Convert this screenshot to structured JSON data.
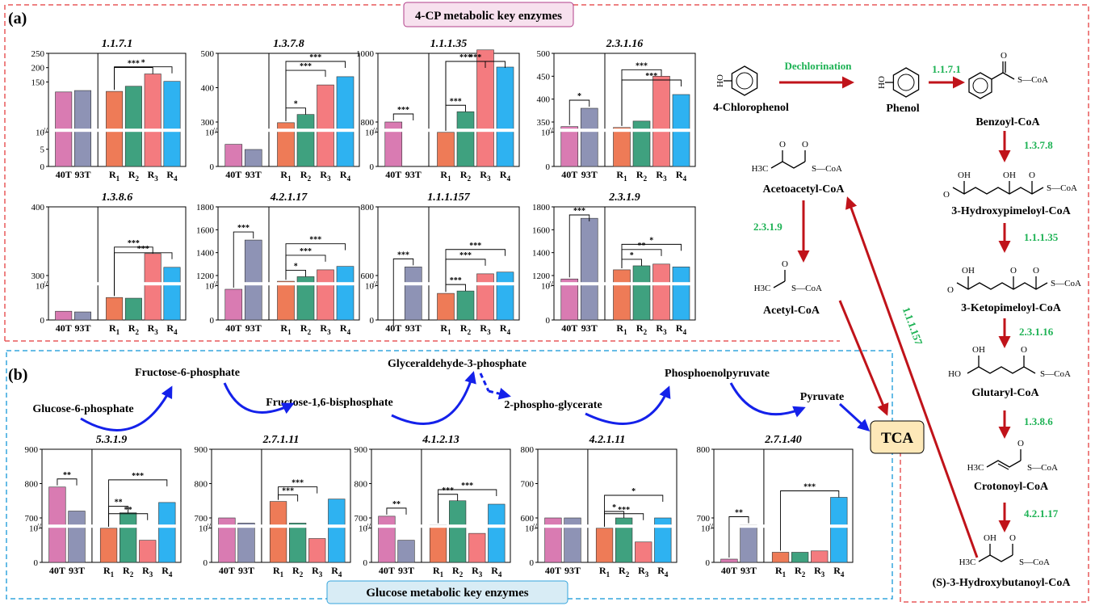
{
  "panel_a": {
    "letter": "(a)",
    "header": "4-CP metabolic key enzymes",
    "groups": [
      "40T",
      "93T",
      "R1",
      "R2",
      "R3",
      "R4"
    ]
  },
  "panel_b": {
    "letter": "(b)",
    "header": "Glucose metabolic key enzymes"
  },
  "colors": {
    "40T": "#d97bb2",
    "93T": "#8e93b5",
    "R1": "#ee7b57",
    "R2": "#3fa17f",
    "R3": "#f47b7f",
    "R4": "#2eb2f1",
    "red_border": "#e8585a",
    "blue_border": "#35a5dd",
    "red_arrow": "#c0131a",
    "blue_arrow": "#1421ea",
    "enzyme_text": "#1db254",
    "pink_box": "#f7e1ee",
    "tca_box": "#fde8b8",
    "bottom_box": "#d8ecf5"
  },
  "chart_data": [
    {
      "type": "bar",
      "title": "1.1.7.1",
      "categories": [
        "40T",
        "93T",
        "R1",
        "R2",
        "R3",
        "R4"
      ],
      "values": [
        115,
        120,
        117,
        135,
        178,
        152
      ],
      "ylim": [
        0,
        250
      ],
      "yticks": [
        "0",
        "5",
        "10",
        "150",
        "200",
        "250"
      ],
      "significance": [
        {
          "a": "R1",
          "b": "R3",
          "label": "***"
        },
        {
          "a": "R1",
          "b": "R4",
          "label": "*"
        }
      ]
    },
    {
      "type": "bar",
      "title": "1.3.7.8",
      "categories": [
        "40T",
        "93T",
        "R1",
        "R2",
        "R3",
        "R4"
      ],
      "values": [
        235,
        220,
        298,
        322,
        408,
        432
      ],
      "ylim": [
        0,
        500
      ],
      "yticks": [
        "0",
        "10",
        "300",
        "400",
        "500"
      ],
      "significance": [
        {
          "a": "R1",
          "b": "R2",
          "label": "*"
        },
        {
          "a": "R1",
          "b": "R3",
          "label": "***"
        },
        {
          "a": "R1",
          "b": "R4",
          "label": "***"
        }
      ]
    },
    {
      "type": "bar",
      "title": "1.1.1.35",
      "categories": [
        "40T",
        "93T",
        "R1",
        "R2",
        "R3",
        "R4"
      ],
      "values": [
        800,
        650,
        770,
        830,
        1010,
        960
      ],
      "ylim": [
        0,
        1000
      ],
      "yticks": [
        "0",
        "10",
        "800",
        "1000"
      ],
      "significance": [
        {
          "a": "40T",
          "b": "93T",
          "label": "***"
        },
        {
          "a": "R1",
          "b": "R2",
          "label": "***"
        },
        {
          "a": "R1",
          "b": "R3",
          "label": "***"
        },
        {
          "a": "R1",
          "b": "R4",
          "label": "***"
        }
      ]
    },
    {
      "type": "bar",
      "title": "2.3.1.16",
      "categories": [
        "40T",
        "93T",
        "R1",
        "R2",
        "R3",
        "R4"
      ],
      "values": [
        340,
        380,
        338,
        352,
        450,
        410
      ],
      "ylim": [
        0,
        500
      ],
      "yticks": [
        "0",
        "10",
        "350",
        "400",
        "450",
        "500"
      ],
      "significance": [
        {
          "a": "40T",
          "b": "93T",
          "label": "*"
        },
        {
          "a": "R1",
          "b": "R3",
          "label": "***"
        },
        {
          "a": "R1",
          "b": "R4",
          "label": "***"
        }
      ]
    },
    {
      "type": "bar",
      "title": "1.3.8.6",
      "categories": [
        "40T",
        "93T",
        "R1",
        "R2",
        "R3",
        "R4"
      ],
      "values": [
        248,
        247,
        268,
        267,
        332,
        312
      ],
      "ylim": [
        0,
        400
      ],
      "yticks": [
        "0",
        "10",
        "300",
        "400"
      ],
      "significance": [
        {
          "a": "R1",
          "b": "R3",
          "label": "***"
        },
        {
          "a": "R1",
          "b": "R4",
          "label": "***"
        }
      ]
    },
    {
      "type": "bar",
      "title": "4.2.1.17",
      "categories": [
        "40T",
        "93T",
        "R1",
        "R2",
        "R3",
        "R4"
      ],
      "values": [
        1080,
        1510,
        1150,
        1190,
        1250,
        1280
      ],
      "ylim": [
        0,
        1800
      ],
      "yticks": [
        "0",
        "10",
        "1200",
        "1400",
        "1600",
        "1800"
      ],
      "significance": [
        {
          "a": "40T",
          "b": "93T",
          "label": "***"
        },
        {
          "a": "R1",
          "b": "R2",
          "label": "*"
        },
        {
          "a": "R1",
          "b": "R3",
          "label": "***"
        },
        {
          "a": "R1",
          "b": "R4",
          "label": "***"
        }
      ]
    },
    {
      "type": "bar",
      "title": "1.1.1.157",
      "categories": [
        "40T",
        "93T",
        "R1",
        "R2",
        "R3",
        "R4"
      ],
      "values": [
        450,
        625,
        548,
        555,
        605,
        610
      ],
      "ylim": [
        0,
        800
      ],
      "yticks": [
        "0",
        "10",
        "600",
        "800"
      ],
      "significance": [
        {
          "a": "40T",
          "b": "93T",
          "label": "***"
        },
        {
          "a": "R1",
          "b": "R2",
          "label": "***"
        },
        {
          "a": "R1",
          "b": "R3",
          "label": "***"
        },
        {
          "a": "R1",
          "b": "R4",
          "label": "***"
        }
      ]
    },
    {
      "type": "bar",
      "title": "2.3.1.9",
      "categories": [
        "40T",
        "93T",
        "R1",
        "R2",
        "R3",
        "R4"
      ],
      "values": [
        1170,
        1700,
        1250,
        1285,
        1300,
        1275
      ],
      "ylim": [
        0,
        1800
      ],
      "yticks": [
        "0",
        "10",
        "1200",
        "1400",
        "1600",
        "1800"
      ],
      "significance": [
        {
          "a": "40T",
          "b": "93T",
          "label": "***"
        },
        {
          "a": "R1",
          "b": "R2",
          "label": "*"
        },
        {
          "a": "R1",
          "b": "R3",
          "label": "**"
        },
        {
          "a": "R1",
          "b": "R4",
          "label": "*"
        }
      ]
    },
    {
      "type": "bar",
      "title": "5.3.1.9",
      "categories": [
        "40T",
        "93T",
        "R1",
        "R2",
        "R3",
        "R4"
      ],
      "values": [
        790,
        720,
        670,
        715,
        635,
        745
      ],
      "ylim": [
        0,
        900
      ],
      "yticks": [
        "0",
        "10",
        "700",
        "800",
        "900"
      ],
      "significance": [
        {
          "a": "40T",
          "b": "93T",
          "label": "**"
        },
        {
          "a": "R1",
          "b": "R2",
          "label": "**"
        },
        {
          "a": "R1",
          "b": "R3",
          "label": "**"
        },
        {
          "a": "R1",
          "b": "R4",
          "label": "***"
        }
      ]
    },
    {
      "type": "bar",
      "title": "2.7.1.11",
      "categories": [
        "40T",
        "93T",
        "R1",
        "R2",
        "R3",
        "R4"
      ],
      "values": [
        700,
        685,
        748,
        685,
        640,
        755
      ],
      "ylim": [
        0,
        900
      ],
      "yticks": [
        "0",
        "10",
        "700",
        "800",
        "900"
      ],
      "significance": [
        {
          "a": "R1",
          "b": "R2",
          "label": "***"
        },
        {
          "a": "R1",
          "b": "R3",
          "label": "***"
        }
      ]
    },
    {
      "type": "bar",
      "title": "4.1.2.13",
      "categories": [
        "40T",
        "93T",
        "R1",
        "R2",
        "R3",
        "R4"
      ],
      "values": [
        705,
        635,
        680,
        750,
        655,
        740
      ],
      "ylim": [
        0,
        900
      ],
      "yticks": [
        "0",
        "10",
        "700",
        "800",
        "900"
      ],
      "significance": [
        {
          "a": "40T",
          "b": "93T",
          "label": "**"
        },
        {
          "a": "R1",
          "b": "R2",
          "label": "***"
        },
        {
          "a": "R1",
          "b": "R4",
          "label": "***"
        }
      ]
    },
    {
      "type": "bar",
      "title": "4.2.1.11",
      "categories": [
        "40T",
        "93T",
        "R1",
        "R2",
        "R3",
        "R4"
      ],
      "values": [
        600,
        600,
        570,
        600,
        530,
        600
      ],
      "ylim": [
        0,
        800
      ],
      "yticks": [
        "0",
        "10",
        "600",
        "700",
        "800"
      ],
      "significance": [
        {
          "a": "R1",
          "b": "R2",
          "label": "*"
        },
        {
          "a": "R1",
          "b": "R3",
          "label": "***"
        },
        {
          "a": "R1",
          "b": "R4",
          "label": "*"
        }
      ]
    },
    {
      "type": "bar",
      "title": "2.7.1.40",
      "categories": [
        "40T",
        "93T",
        "R1",
        "R2",
        "R3",
        "R4"
      ],
      "values": [
        640,
        690,
        650,
        650,
        652,
        730
      ],
      "ylim": [
        0,
        800
      ],
      "yticks": [
        "0",
        "10",
        "700",
        "800"
      ],
      "significance": [
        {
          "a": "40T",
          "b": "93T",
          "label": "**"
        },
        {
          "a": "R1",
          "b": "R4",
          "label": "***"
        }
      ]
    }
  ],
  "pathway": {
    "metabolites": {
      "chlorophenol": "4-Chlorophenol",
      "phenol": "Phenol",
      "benzoyl": "Benzoyl-CoA",
      "hydroxypimeloyl": "3-Hydroxypimeloyl-CoA",
      "ketopimeloyl": "3-Ketopimeloyl-CoA",
      "glutaryl": "Glutaryl-CoA",
      "crotonoyl": "Crotonoyl-CoA",
      "hydroxybutanoyl": "(S)-3-Hydroxybutanoyl-CoA",
      "acetoacetyl": "Acetoacetyl-CoA",
      "acetyl": "Acetyl-CoA",
      "tca": "TCA"
    },
    "steps": {
      "dechlorination": "Dechlorination",
      "e1": "1.1.7.1",
      "e2": "1.3.7.8",
      "e3": "1.1.1.35",
      "e4": "2.3.1.16",
      "e5": "1.3.8.6",
      "e6": "4.2.1.17",
      "e7": "1.1.1.157",
      "e8": "2.3.1.9"
    },
    "glucose": {
      "g6p": "Glucose-6-phosphate",
      "f6p": "Fructose-6-phosphate",
      "fbp": "Fructose-1,6-bisphosphate",
      "g3p": "Glyceraldehyde-3-phosphate",
      "pg": "2-phospho-glycerate",
      "pep": "Phosphoenolpyruvate",
      "pyr": "Pyruvate"
    },
    "structure_text": {
      "coa": "S—CoA",
      "h3c": "H3C",
      "oh": "OH",
      "o": "O",
      "ho": "HO"
    }
  }
}
